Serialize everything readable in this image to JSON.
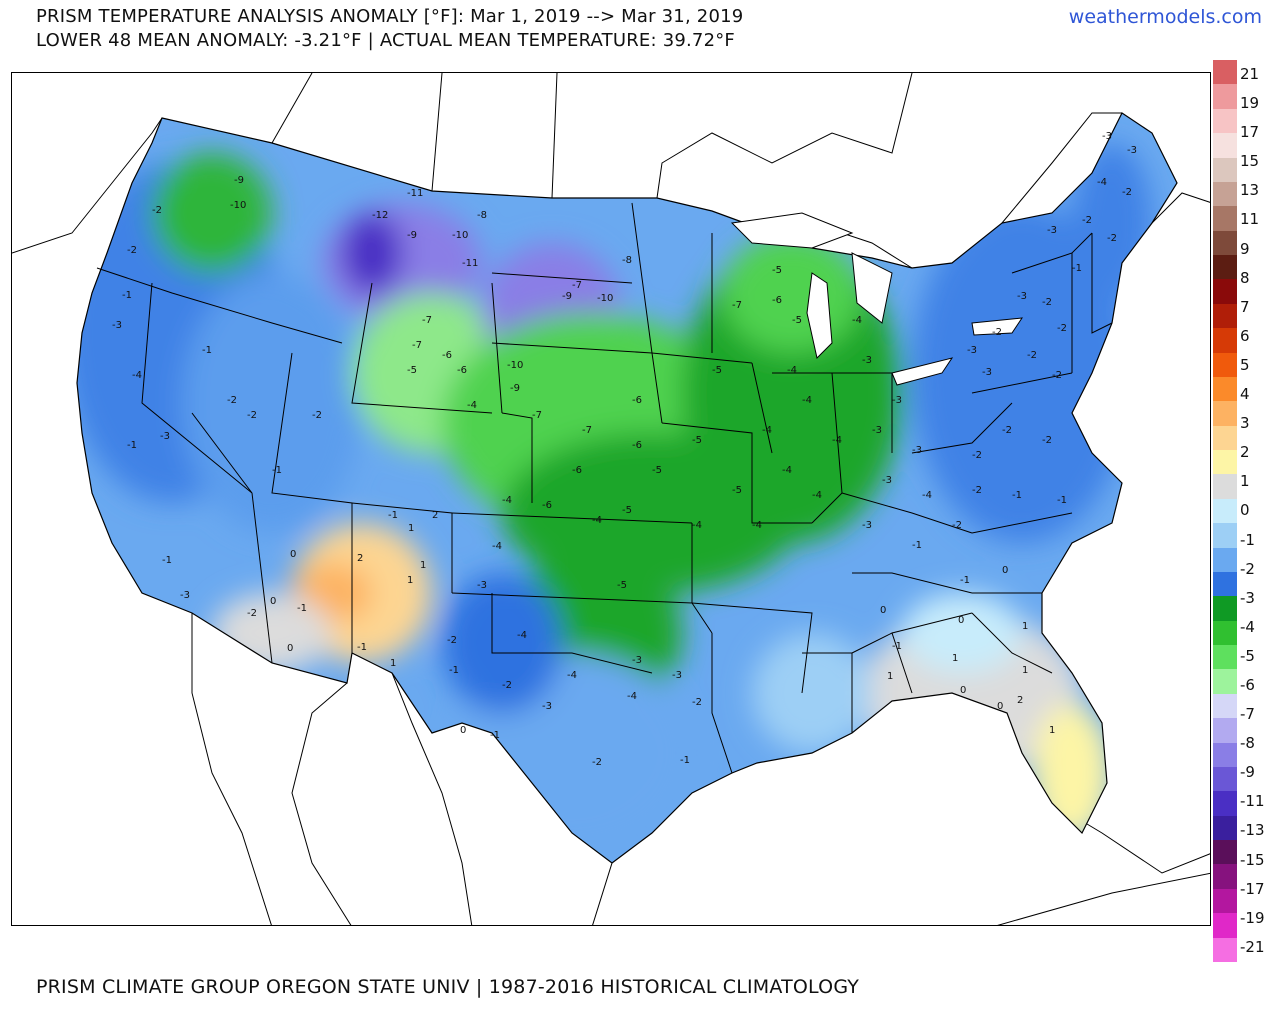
{
  "header": {
    "title_line1": "PRISM TEMPERATURE ANALYSIS ANOMALY [°F]: Mar 1, 2019 --> Mar 31, 2019",
    "title_line2": "LOWER 48 MEAN ANOMALY: -3.21°F | ACTUAL MEAN TEMPERATURE: 39.72°F",
    "brand": "weathermodels.com"
  },
  "footer": {
    "source": "PRISM CLIMATE GROUP OREGON STATE UNIV | 1987-2016 HISTORICAL CLIMATOLOGY"
  },
  "legend": {
    "labels": [
      "21",
      "19",
      "17",
      "15",
      "13",
      "11",
      "9",
      "8",
      "7",
      "6",
      "5",
      "4",
      "3",
      "2",
      "1",
      "0",
      "-1",
      "-2",
      "-3",
      "-4",
      "-5",
      "-6",
      "-7",
      "-8",
      "-9",
      "-11",
      "-13",
      "-15",
      "-17",
      "-19",
      "-21"
    ],
    "colors": [
      "#d95f62",
      "#ee9a9d",
      "#f7c4c5",
      "#f6e1df",
      "#dcc7be",
      "#c6a295",
      "#a77766",
      "#7e4a3a",
      "#5c1d12",
      "#8a0a0a",
      "#b01e08",
      "#d63a06",
      "#f05a0c",
      "#fb8a2a",
      "#fdb262",
      "#fdd592",
      "#fdf5a6",
      "#dcdcdc",
      "#c8ecfb",
      "#9dcff5",
      "#6aa9f0",
      "#2f72e0",
      "#0f9a24",
      "#30c030",
      "#5ee05e",
      "#9df39c",
      "#d5d7f7",
      "#b2aaf0",
      "#8a7ee6",
      "#6a57d6",
      "#4a2fc4",
      "#3a1f9e",
      "#5a0f5a",
      "#86127e",
      "#b3179f",
      "#e028c8",
      "#f56ee2"
    ]
  },
  "map_labels": {
    "ne_region": [
      "-3",
      "-3",
      "-2",
      "-4",
      "-2",
      "-2",
      "-3",
      "-1",
      "-3",
      "-2",
      "-2",
      "-2",
      "-3",
      "-2",
      "-3",
      "-2"
    ],
    "midwest": [
      "-5",
      "-6",
      "-7",
      "-5",
      "-4",
      "-4",
      "-5",
      "-3",
      "-4",
      "-3",
      "-4",
      "-4",
      "-3",
      "-4",
      "-5",
      "-4",
      "-4"
    ],
    "plains": [
      "-7",
      "-9",
      "-10",
      "-8",
      "-6",
      "-7",
      "-6",
      "-5",
      "-6",
      "-7",
      "-5",
      "-6",
      "-4",
      "-5",
      "-4",
      "-4"
    ],
    "mountain": [
      "-9",
      "-10",
      "-11",
      "-12",
      "-9",
      "-8",
      "-10",
      "-11",
      "-7",
      "-6",
      "-7",
      "-5",
      "-6",
      "-4",
      "-10",
      "-9"
    ],
    "west": [
      "-2",
      "-2",
      "-1",
      "-3",
      "-4",
      "-1",
      "-2",
      "-1",
      "-3",
      "-1",
      "-2",
      "-2",
      "-1",
      "-3",
      "-2",
      "-1"
    ],
    "southwest": [
      "0",
      "2",
      "1",
      "2",
      "1",
      "1",
      "0",
      "-1",
      "-2",
      "-1",
      "0",
      "-1",
      "1"
    ],
    "south": [
      "-4",
      "-3",
      "-5",
      "-4",
      "-3",
      "-2",
      "-3",
      "-4",
      "-2",
      "-1",
      "-2",
      "-3",
      "-4",
      "-1",
      "0"
    ],
    "southeast": [
      "0",
      "1",
      "0",
      "-1",
      "1",
      "0",
      "1",
      "2",
      "1",
      "0",
      "-1",
      "1",
      "0"
    ],
    "east": [
      "-3",
      "-2",
      "-4",
      "-3",
      "-2",
      "-1",
      "-2",
      "-3",
      "-1",
      "-2",
      "-2",
      "-1"
    ]
  }
}
